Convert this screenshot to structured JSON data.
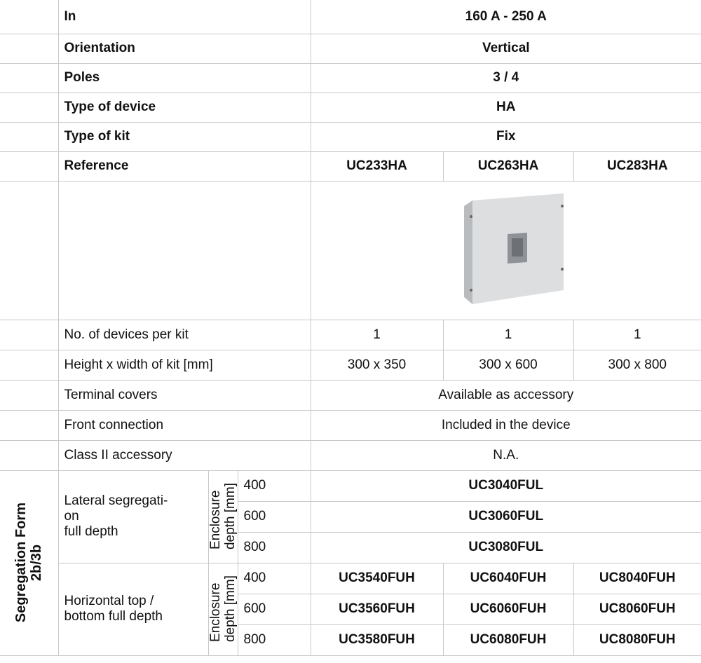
{
  "header_rows": [
    {
      "label": "In",
      "value": "160 A - 250 A"
    },
    {
      "label": "Orientation",
      "value": "Vertical"
    },
    {
      "label": "Poles",
      "value": "3 / 4"
    },
    {
      "label": "Type of device",
      "value": "HA"
    },
    {
      "label": "Type of kit",
      "value": "Fix"
    }
  ],
  "reference": {
    "label": "Reference",
    "values": [
      "UC233HA",
      "UC263HA",
      "UC283HA"
    ]
  },
  "spec_rows": [
    {
      "label": "No. of devices per kit",
      "values": [
        "1",
        "1",
        "1"
      ]
    },
    {
      "label": "Height x width of kit [mm]",
      "values": [
        "300 x 350",
        "300 x 600",
        "300 x 800"
      ]
    }
  ],
  "merged_rows": [
    {
      "label": "Terminal covers",
      "value": "Available as accessory"
    },
    {
      "label": "Front connection",
      "value": "Included in the device"
    },
    {
      "label": "Class II accessory",
      "value": "N.A."
    }
  ],
  "segregation": {
    "title": "Segregation Form\n2b/3b",
    "groups": [
      {
        "label": "Lateral segregati-\non\nfull depth",
        "axis": "Enclosure\ndepth [mm]",
        "rows": [
          {
            "depth": 400,
            "values": [
              "UC3040FUL"
            ]
          },
          {
            "depth": 600,
            "values": [
              "UC3060FUL"
            ]
          },
          {
            "depth": 800,
            "values": [
              "UC3080FUL"
            ]
          }
        ]
      },
      {
        "label": "Horizontal top /\nbottom full depth",
        "axis": "Enclosure\ndepth [mm]",
        "rows": [
          {
            "depth": 400,
            "values": [
              "UC3540FUH",
              "UC6040FUH",
              "UC8040FUH"
            ]
          },
          {
            "depth": 600,
            "values": [
              "UC3560FUH",
              "UC6060FUH",
              "UC8060FUH"
            ]
          },
          {
            "depth": 800,
            "values": [
              "UC3580FUH",
              "UC6080FUH",
              "UC8080FUH"
            ]
          }
        ]
      }
    ]
  }
}
